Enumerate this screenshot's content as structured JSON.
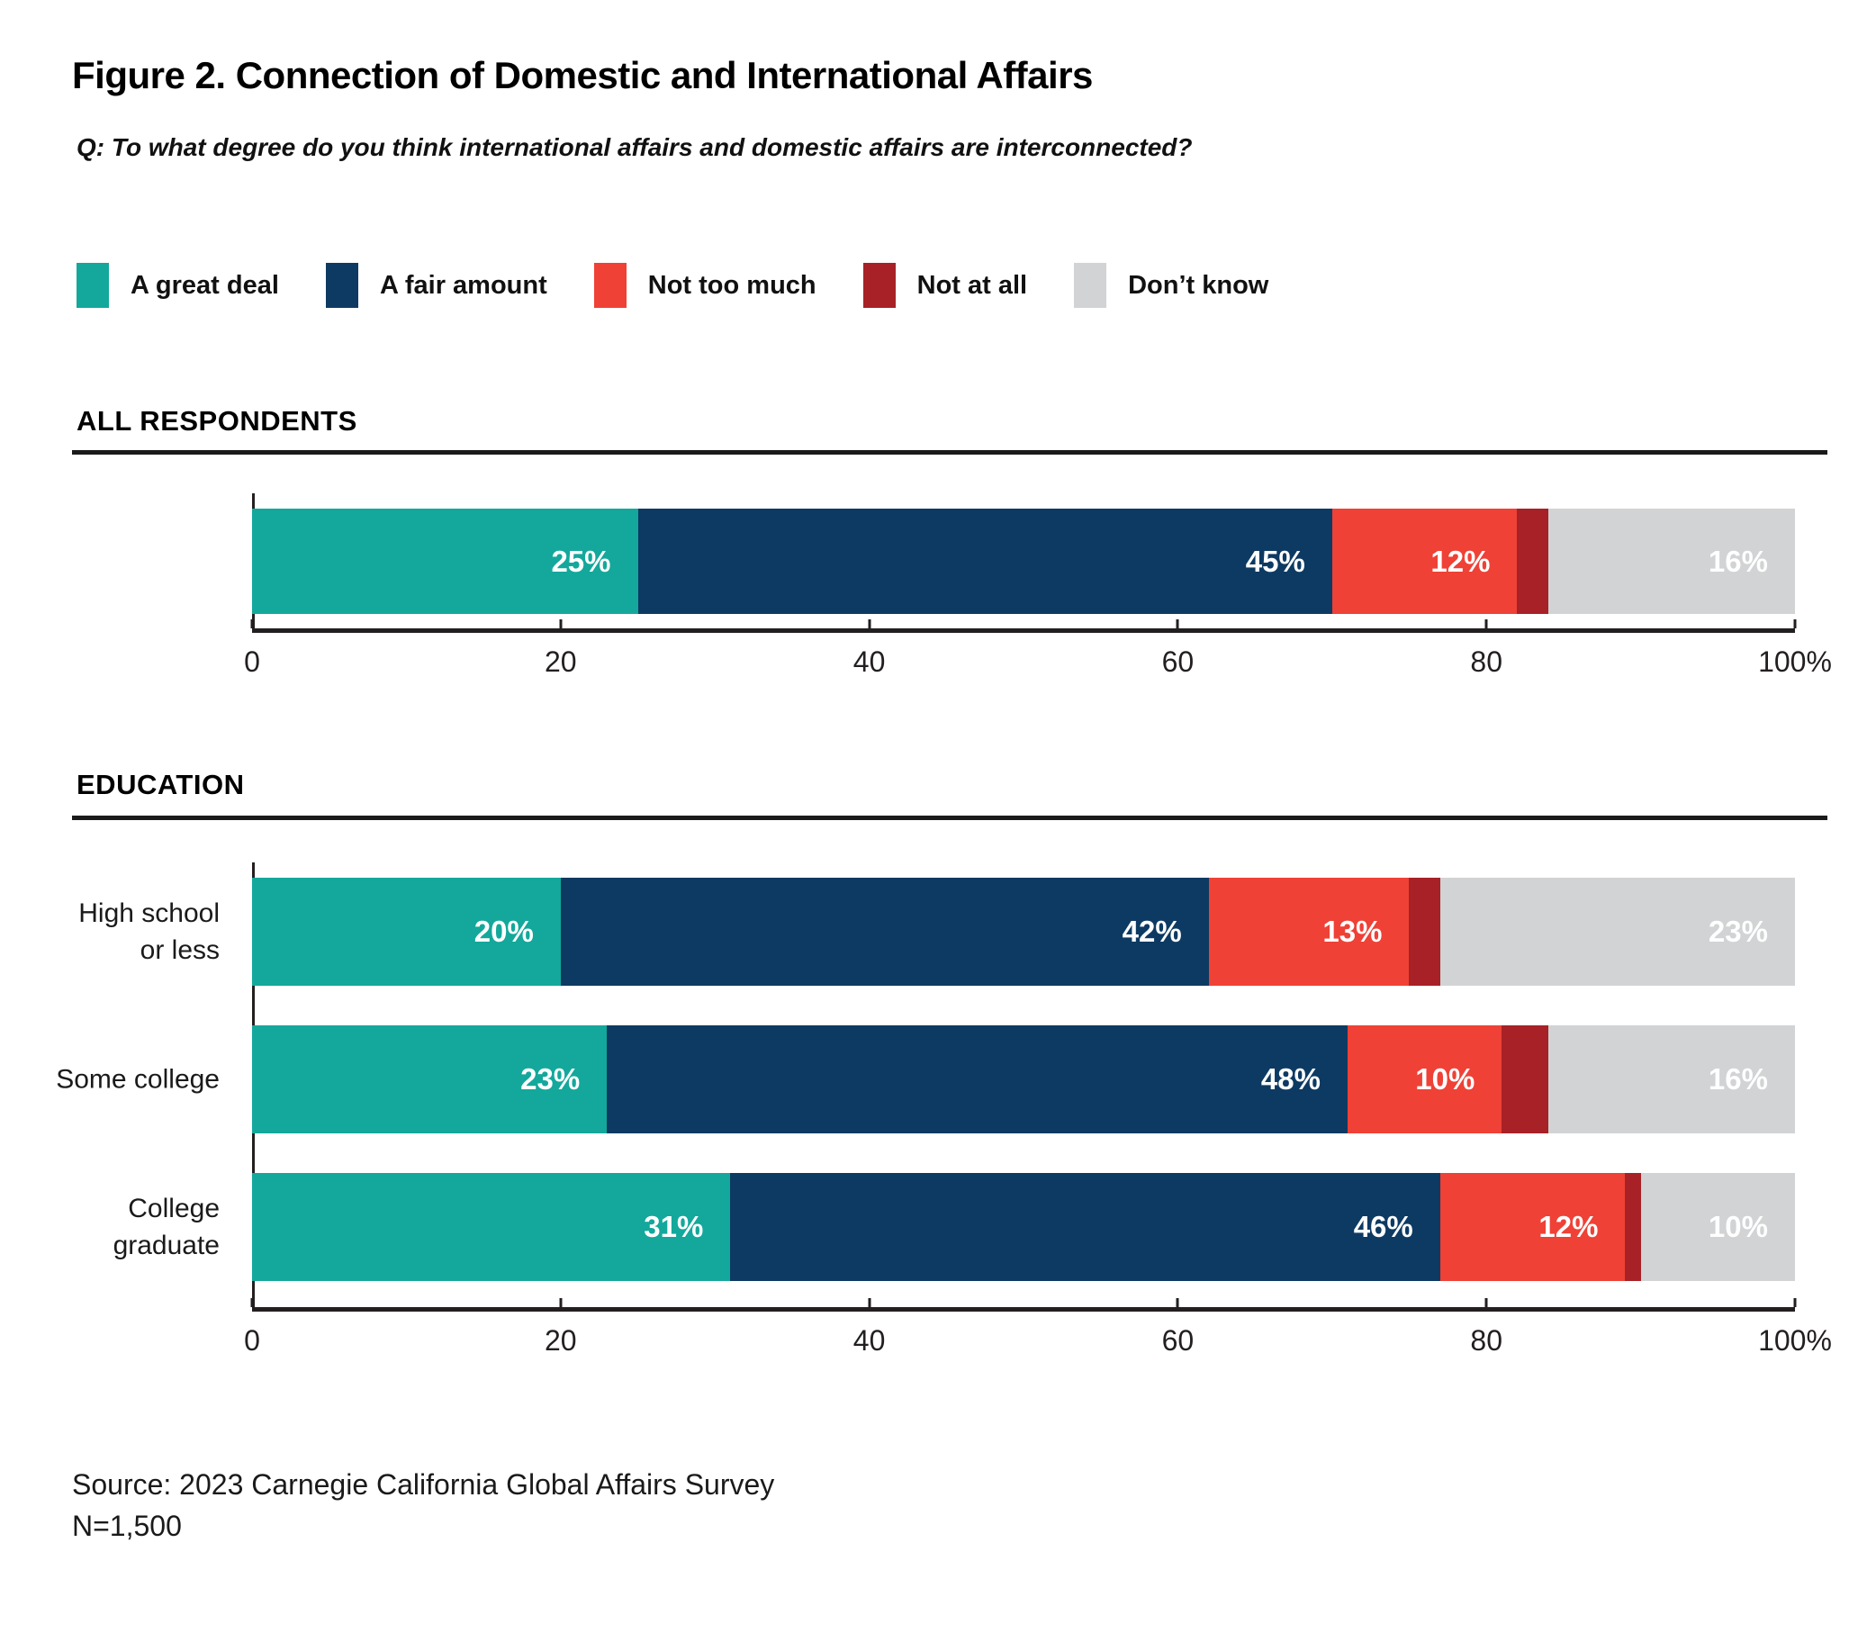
{
  "figure": {
    "title": "Figure 2. Connection of Domestic and International Affairs",
    "question": "Q: To what degree do you think international affairs and domestic affairs are interconnected?",
    "source": "Source: 2023 Carnegie California Global Affairs Survey",
    "sample_size": "N=1,500"
  },
  "colors": {
    "a_great_deal": "#13A89B",
    "a_fair_amount": "#0D3A62",
    "not_too_much": "#EF4136",
    "not_at_all": "#A72126",
    "dont_know": "#D1D3D4",
    "bar_label_text": "#FFFFFF",
    "axis": "#231F20"
  },
  "legend": [
    {
      "label": "A great deal",
      "color": "#13A89B"
    },
    {
      "label": "A fair amount",
      "color": "#0D3A62"
    },
    {
      "label": "Not too much",
      "color": "#EF4136"
    },
    {
      "label": "Not at all",
      "color": "#A72126"
    },
    {
      "label": "Don’t know",
      "color": "#D1D3D4"
    }
  ],
  "chart_data": [
    {
      "type": "bar",
      "orientation": "horizontal",
      "stacked": true,
      "section_label": "ALL RESPONDENTS",
      "categories": [
        []
      ],
      "series": [
        {
          "name": "A great deal",
          "color": "#13A89B",
          "values": [
            25
          ]
        },
        {
          "name": "A fair amount",
          "color": "#0D3A62",
          "values": [
            45
          ]
        },
        {
          "name": "Not too much",
          "color": "#EF4136",
          "values": [
            12
          ]
        },
        {
          "name": "Not at all",
          "color": "#A72126",
          "values": [
            2
          ]
        },
        {
          "name": "Don’t know",
          "color": "#D1D3D4",
          "values": [
            16
          ]
        }
      ],
      "value_suffix": "%",
      "label_min_value": 5,
      "xlim": [
        0,
        100
      ],
      "xticks": [
        {
          "value": 0,
          "label": "0"
        },
        {
          "value": 20,
          "label": "20"
        },
        {
          "value": 40,
          "label": "40"
        },
        {
          "value": 60,
          "label": "60"
        },
        {
          "value": 80,
          "label": "80"
        },
        {
          "value": 100,
          "label": "100%"
        }
      ]
    },
    {
      "type": "bar",
      "orientation": "horizontal",
      "stacked": true,
      "section_label": "EDUCATION",
      "categories": [
        [
          "High school",
          "or less"
        ],
        [
          "Some college"
        ],
        [
          "College",
          "graduate"
        ]
      ],
      "series": [
        {
          "name": "A great deal",
          "color": "#13A89B",
          "values": [
            20,
            23,
            31
          ]
        },
        {
          "name": "A fair amount",
          "color": "#0D3A62",
          "values": [
            42,
            48,
            46
          ]
        },
        {
          "name": "Not too much",
          "color": "#EF4136",
          "values": [
            13,
            10,
            12
          ]
        },
        {
          "name": "Not at all",
          "color": "#A72126",
          "values": [
            2,
            3,
            1
          ]
        },
        {
          "name": "Don’t know",
          "color": "#D1D3D4",
          "values": [
            23,
            16,
            10
          ]
        }
      ],
      "value_suffix": "%",
      "label_min_value": 5,
      "xlim": [
        0,
        100
      ],
      "xticks": [
        {
          "value": 0,
          "label": "0"
        },
        {
          "value": 20,
          "label": "20"
        },
        {
          "value": 40,
          "label": "40"
        },
        {
          "value": 60,
          "label": "60"
        },
        {
          "value": 80,
          "label": "80"
        },
        {
          "value": 100,
          "label": "100%"
        }
      ]
    }
  ]
}
